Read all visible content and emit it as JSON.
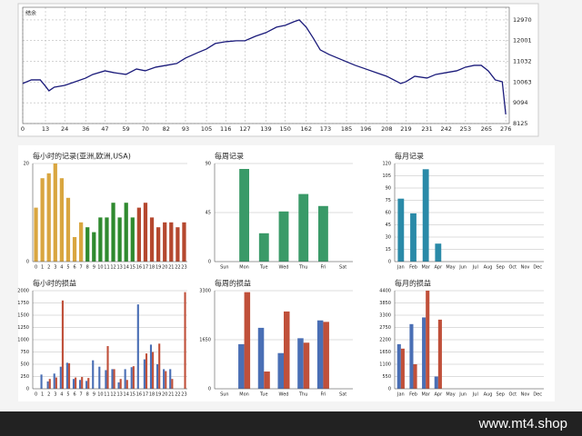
{
  "chart_data": [
    {
      "type": "line",
      "title": "结余",
      "color": "#1a1a7a",
      "x": [
        0,
        5,
        10,
        13,
        15,
        18,
        24,
        30,
        36,
        40,
        47,
        52,
        59,
        65,
        70,
        76,
        82,
        88,
        93,
        100,
        105,
        110,
        116,
        122,
        127,
        133,
        139,
        145,
        150,
        155,
        158,
        162,
        166,
        170,
        175,
        180,
        185,
        190,
        196,
        202,
        208,
        212,
        216,
        219,
        224,
        231,
        236,
        242,
        248,
        253,
        258,
        262,
        266,
        270,
        274,
        276
      ],
      "values": [
        10000,
        10165,
        10165,
        9868,
        9655,
        9825,
        9910,
        10080,
        10250,
        10420,
        10590,
        10505,
        10420,
        10675,
        10590,
        10760,
        10845,
        10930,
        11185,
        11440,
        11610,
        11865,
        11950,
        11993,
        11993,
        12205,
        12375,
        12630,
        12715,
        12885,
        12970,
        12630,
        12120,
        11568,
        11355,
        11185,
        11015,
        10845,
        10675,
        10505,
        10335,
        10165,
        9995,
        10080,
        10335,
        10250,
        10420,
        10505,
        10590,
        10760,
        10845,
        10845,
        10590,
        10165,
        10080,
        8550
      ],
      "xlim": [
        0,
        278
      ],
      "xticks": [
        0,
        13,
        24,
        36,
        47,
        59,
        70,
        82,
        93,
        105,
        116,
        127,
        139,
        150,
        162,
        173,
        185,
        196,
        208,
        219,
        231,
        242,
        253,
        265,
        276
      ],
      "ylim": [
        8125,
        13560
      ],
      "yticks": [
        8125,
        9094,
        10063,
        11032,
        12001,
        12970
      ],
      "grid": true
    },
    {
      "type": "bar",
      "title": "每小时的记录(亚洲,欧洲,USA)",
      "categories": [
        "0",
        "1",
        "2",
        "3",
        "4",
        "5",
        "6",
        "7",
        "8",
        "9",
        "10",
        "11",
        "12",
        "13",
        "14",
        "15",
        "16",
        "17",
        "18",
        "19",
        "20",
        "21",
        "22",
        "23"
      ],
      "values": [
        11,
        17,
        18,
        20,
        17,
        13,
        5,
        8,
        7,
        6,
        9,
        9,
        12,
        9,
        12,
        9,
        11,
        12,
        9,
        7,
        8,
        8,
        7,
        8
      ],
      "colors": [
        "#d9a640",
        "#d9a640",
        "#d9a640",
        "#d9a640",
        "#d9a640",
        "#d9a640",
        "#d9a640",
        "#d9a640",
        "#2f8a2f",
        "#2f8a2f",
        "#2f8a2f",
        "#2f8a2f",
        "#2f8a2f",
        "#2f8a2f",
        "#2f8a2f",
        "#2f8a2f",
        "#b5482f",
        "#b5482f",
        "#b5482f",
        "#b5482f",
        "#b5482f",
        "#b5482f",
        "#b5482f",
        "#b5482f"
      ],
      "ylim": [
        0,
        20
      ],
      "yticks": [
        0,
        20
      ],
      "grid": true
    },
    {
      "type": "bar",
      "title": "每周记录",
      "categories": [
        "Sun",
        "Mon",
        "Tue",
        "Wed",
        "Thu",
        "Fri",
        "Sat"
      ],
      "values": [
        0,
        85,
        26,
        46,
        62,
        51,
        0
      ],
      "color": "#3a9a68",
      "ylim": [
        0,
        90
      ],
      "yticks": [
        0,
        45,
        90
      ],
      "grid": true
    },
    {
      "type": "bar",
      "title": "每月记录",
      "categories": [
        "Jan",
        "Feb",
        "Mar",
        "Apr",
        "May",
        "Jun",
        "Jul",
        "Aug",
        "Sep",
        "Oct",
        "Nov",
        "Dec"
      ],
      "values": [
        77,
        59,
        113,
        22,
        0,
        0,
        0,
        0,
        0,
        0,
        0,
        0
      ],
      "color": "#2a8aa8",
      "ylim": [
        0,
        120
      ],
      "yticks": [
        0,
        15,
        30,
        45,
        60,
        75,
        90,
        105,
        120
      ],
      "grid": true
    },
    {
      "type": "pair",
      "title": "每小时的损益",
      "categories": [
        "0",
        "1",
        "2",
        "3",
        "4",
        "5",
        "6",
        "7",
        "8",
        "9",
        "10",
        "11",
        "12",
        "13",
        "14",
        "15",
        "16",
        "17",
        "18",
        "19",
        "20",
        "21",
        "22",
        "23"
      ],
      "series": [
        {
          "color": "#4a6fb5",
          "values": [
            0,
            290,
            150,
            310,
            450,
            530,
            200,
            180,
            160,
            580,
            450,
            380,
            400,
            130,
            400,
            440,
            1720,
            600,
            900,
            500,
            400,
            400,
            0,
            0
          ]
        },
        {
          "color": "#c0503a",
          "values": [
            0,
            0,
            200,
            230,
            1800,
            520,
            230,
            240,
            220,
            0,
            0,
            870,
            400,
            200,
            180,
            460,
            0,
            720,
            750,
            920,
            360,
            200,
            0,
            1970
          ]
        }
      ],
      "ylim": [
        0,
        2000
      ],
      "yticks": [
        0,
        250,
        500,
        750,
        1000,
        1250,
        1500,
        1750,
        2000
      ],
      "grid": true
    },
    {
      "type": "pair",
      "title": "每周的损益",
      "categories": [
        "Sun",
        "Mon",
        "Tue",
        "Wed",
        "Thu",
        "Fri",
        "Sat"
      ],
      "series": [
        {
          "color": "#4a6fb5",
          "values": [
            0,
            1500,
            2050,
            1200,
            1700,
            2300,
            0
          ]
        },
        {
          "color": "#c0503a",
          "values": [
            0,
            3250,
            580,
            2600,
            1550,
            2250,
            0
          ]
        }
      ],
      "ylim": [
        0,
        3300
      ],
      "yticks": [
        0,
        1650,
        3300
      ],
      "grid": true
    },
    {
      "type": "pair",
      "title": "每月的损益",
      "categories": [
        "Jan",
        "Feb",
        "Mar",
        "Apr",
        "May",
        "Jun",
        "Jul",
        "Aug",
        "Sep",
        "Oct",
        "Nov",
        "Dec"
      ],
      "series": [
        {
          "color": "#4a6fb5",
          "values": [
            2000,
            2900,
            3200,
            550,
            0,
            0,
            0,
            0,
            0,
            0,
            0,
            0
          ]
        },
        {
          "color": "#c0503a",
          "values": [
            1800,
            1100,
            4400,
            3100,
            0,
            0,
            0,
            0,
            0,
            0,
            0,
            0
          ]
        }
      ],
      "ylim": [
        0,
        4400
      ],
      "yticks": [
        0,
        550,
        1100,
        1650,
        2200,
        2750,
        3300,
        3850,
        4400
      ],
      "grid": true
    }
  ],
  "footer": {
    "site": "www.mt4.shop"
  }
}
